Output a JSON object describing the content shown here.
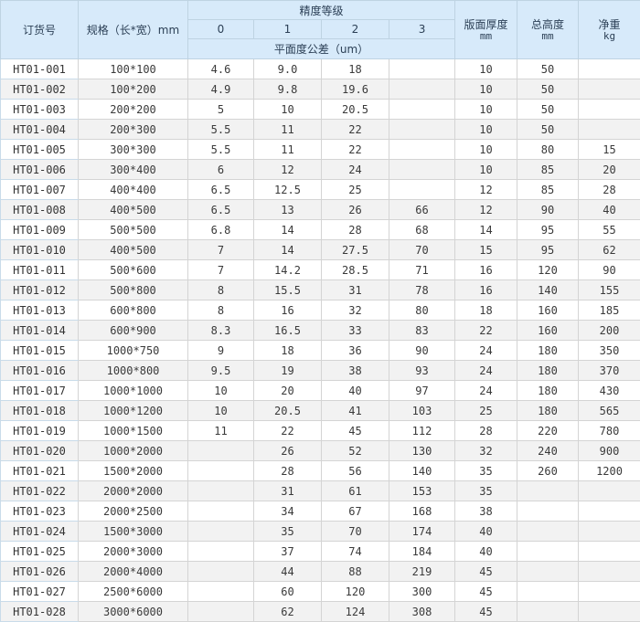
{
  "table": {
    "header": {
      "order_no": "订货号",
      "spec": "规格（长*宽）mm",
      "precision_group": "精度等级",
      "grades": [
        "0",
        "1",
        "2",
        "3"
      ],
      "flatness": "平面度公差（um）",
      "thickness_label": "版面厚度",
      "thickness_unit": "mm",
      "height_label": "总高度",
      "height_unit": "mm",
      "weight_label": "净重",
      "weight_unit": "kg"
    },
    "rows": [
      [
        "HT01-001",
        "100*100",
        "4.6",
        "9.0",
        "18",
        "",
        "10",
        "50",
        ""
      ],
      [
        "HT01-002",
        "100*200",
        "4.9",
        "9.8",
        "19.6",
        "",
        "10",
        "50",
        ""
      ],
      [
        "HT01-003",
        "200*200",
        "5",
        "10",
        "20.5",
        "",
        "10",
        "50",
        ""
      ],
      [
        "HT01-004",
        "200*300",
        "5.5",
        "11",
        "22",
        "",
        "10",
        "50",
        ""
      ],
      [
        "HT01-005",
        "300*300",
        "5.5",
        "11",
        "22",
        "",
        "10",
        "80",
        "15"
      ],
      [
        "HT01-006",
        "300*400",
        "6",
        "12",
        "24",
        "",
        "10",
        "85",
        "20"
      ],
      [
        "HT01-007",
        "400*400",
        "6.5",
        "12.5",
        "25",
        "",
        "12",
        "85",
        "28"
      ],
      [
        "HT01-008",
        "400*500",
        "6.5",
        "13",
        "26",
        "66",
        "12",
        "90",
        "40"
      ],
      [
        "HT01-009",
        "500*500",
        "6.8",
        "14",
        "28",
        "68",
        "14",
        "95",
        "55"
      ],
      [
        "HT01-010",
        "400*500",
        "7",
        "14",
        "27.5",
        "70",
        "15",
        "95",
        "62"
      ],
      [
        "HT01-011",
        "500*600",
        "7",
        "14.2",
        "28.5",
        "71",
        "16",
        "120",
        "90"
      ],
      [
        "HT01-012",
        "500*800",
        "8",
        "15.5",
        "31",
        "78",
        "16",
        "140",
        "155"
      ],
      [
        "HT01-013",
        "600*800",
        "8",
        "16",
        "32",
        "80",
        "18",
        "160",
        "185"
      ],
      [
        "HT01-014",
        "600*900",
        "8.3",
        "16.5",
        "33",
        "83",
        "22",
        "160",
        "200"
      ],
      [
        "HT01-015",
        "1000*750",
        "9",
        "18",
        "36",
        "90",
        "24",
        "180",
        "350"
      ],
      [
        "HT01-016",
        "1000*800",
        "9.5",
        "19",
        "38",
        "93",
        "24",
        "180",
        "370"
      ],
      [
        "HT01-017",
        "1000*1000",
        "10",
        "20",
        "40",
        "97",
        "24",
        "180",
        "430"
      ],
      [
        "HT01-018",
        "1000*1200",
        "10",
        "20.5",
        "41",
        "103",
        "25",
        "180",
        "565"
      ],
      [
        "HT01-019",
        "1000*1500",
        "11",
        "22",
        "45",
        "112",
        "28",
        "220",
        "780"
      ],
      [
        "HT01-020",
        "1000*2000",
        "",
        "26",
        "52",
        "130",
        "32",
        "240",
        "900"
      ],
      [
        "HT01-021",
        "1500*2000",
        "",
        "28",
        "56",
        "140",
        "35",
        "260",
        "1200"
      ],
      [
        "HT01-022",
        "2000*2000",
        "",
        "31",
        "61",
        "153",
        "35",
        "",
        ""
      ],
      [
        "HT01-023",
        "2000*2500",
        "",
        "34",
        "67",
        "168",
        "38",
        "",
        ""
      ],
      [
        "HT01-024",
        "1500*3000",
        "",
        "35",
        "70",
        "174",
        "40",
        "",
        ""
      ],
      [
        "HT01-025",
        "2000*3000",
        "",
        "37",
        "74",
        "184",
        "40",
        "",
        ""
      ],
      [
        "HT01-026",
        "2000*4000",
        "",
        "44",
        "88",
        "219",
        "45",
        "",
        ""
      ],
      [
        "HT01-027",
        "2500*6000",
        "",
        "60",
        "120",
        "300",
        "45",
        "",
        ""
      ],
      [
        "HT01-028",
        "3000*6000",
        "",
        "62",
        "124",
        "308",
        "45",
        "",
        ""
      ]
    ]
  },
  "colors": {
    "header_bg": "#d7eafa",
    "stripe_bg": "#f2f2f2",
    "border": "#d4d4d4",
    "header_border": "#bed3e2",
    "text": "#3a3a3a"
  }
}
